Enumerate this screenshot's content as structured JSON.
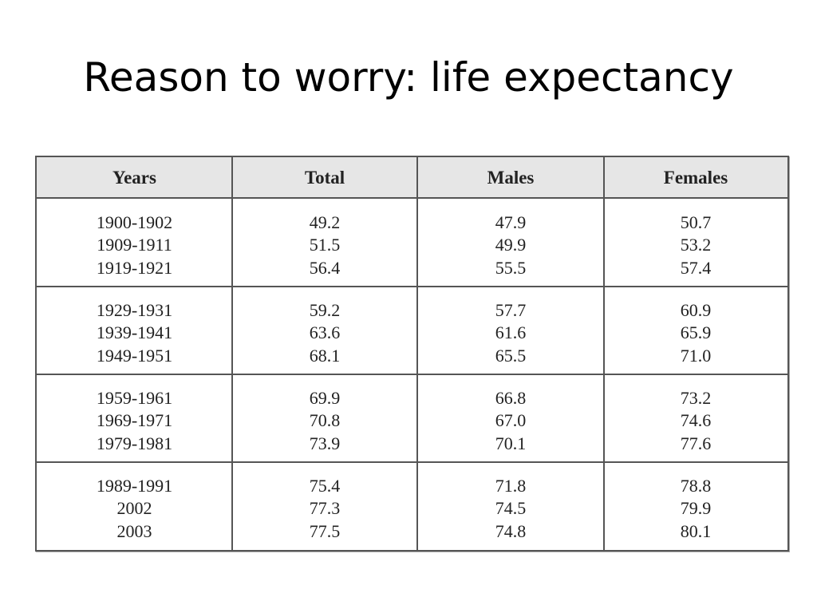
{
  "slide": {
    "title": "Reason to worry: life expectancy"
  },
  "table": {
    "headers": [
      "Years",
      "Total",
      "Males",
      "Females"
    ],
    "groups": [
      {
        "rows": [
          [
            "1900-1902",
            "49.2",
            "47.9",
            "50.7"
          ],
          [
            "1909-1911",
            "51.5",
            "49.9",
            "53.2"
          ],
          [
            "1919-1921",
            "56.4",
            "55.5",
            "57.4"
          ]
        ]
      },
      {
        "rows": [
          [
            "1929-1931",
            "59.2",
            "57.7",
            "60.9"
          ],
          [
            "1939-1941",
            "63.6",
            "61.6",
            "65.9"
          ],
          [
            "1949-1951",
            "68.1",
            "65.5",
            "71.0"
          ]
        ]
      },
      {
        "rows": [
          [
            "1959-1961",
            "69.9",
            "66.8",
            "73.2"
          ],
          [
            "1969-1971",
            "70.8",
            "67.0",
            "74.6"
          ],
          [
            "1979-1981",
            "73.9",
            "70.1",
            "77.6"
          ]
        ]
      },
      {
        "rows": [
          [
            "1989-1991",
            "75.4",
            "71.8",
            "78.8"
          ],
          [
            "2002",
            "77.3",
            "74.5",
            "79.9"
          ],
          [
            "2003",
            "77.5",
            "74.8",
            "80.1"
          ]
        ]
      }
    ]
  }
}
